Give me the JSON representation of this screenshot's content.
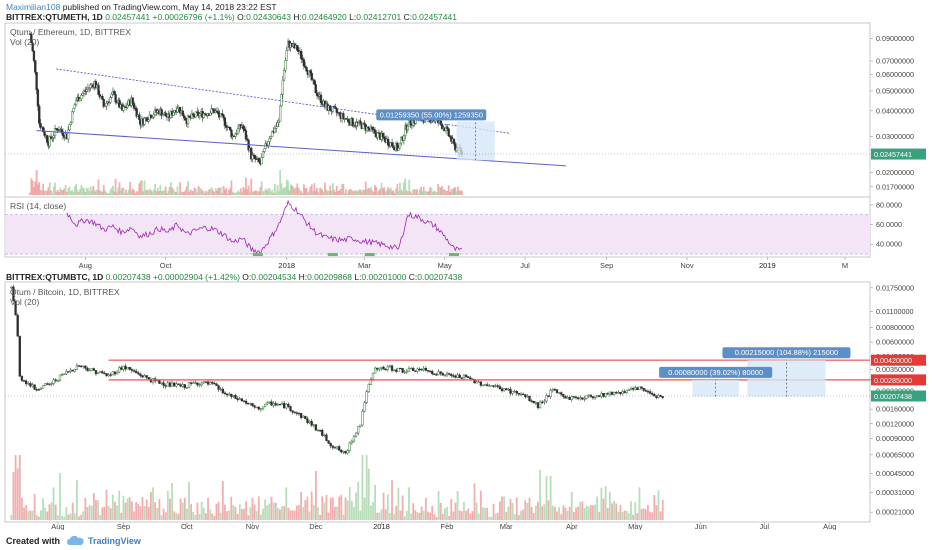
{
  "header": {
    "author": "Maximilian108",
    "published": " published on TradingView.com, May 14, 2018 23:22 EST"
  },
  "top": {
    "symbol_line": {
      "symbol": "BITTREX:QTUMETH, 1D",
      "last": "0.02457441",
      "change": "+0.00026796 (+1.1%)",
      "o_label": "O:",
      "o": "0.02430643",
      "h_label": "H:",
      "h": "0.02464920",
      "l_label": "L:",
      "l": "0.02412701",
      "c_label": "C:",
      "c": "0.02457441"
    },
    "pane_title": "Qtum / Ethereum, 1D, BITTREX",
    "vol_label": "Vol (20)",
    "rsi_label": "RSI (14, close)",
    "price_tag": "0.02457441",
    "measure_label": "0.01259350 (55.00%) 1259350"
  },
  "bottom": {
    "symbol_line": {
      "symbol": "BITTREX:QTUMBTC, 1D",
      "last": "0.00207438",
      "change": "+0.00002904 (+1.42%)",
      "o_label": "O:",
      "o": "0.00204534",
      "h_label": "H:",
      "h": "0.00209868",
      "l_label": "L:",
      "l": "0.00201000",
      "c_label": "C:",
      "c": "0.00207438"
    },
    "pane_title": "Qtum / Bitcoin, 1D, BITTREX",
    "vol_label": "Vol (20)",
    "price_tag": "0.00207438",
    "level_tags": [
      "0.00420000",
      "0.00285000"
    ],
    "measure_labels": [
      "0.00215000 (104.88%) 215000",
      "0.00080000 (39.02%) 80000"
    ]
  },
  "footer": {
    "created_with": "Created with",
    "brand": "TradingView"
  },
  "colors": {
    "up": "#26a69a",
    "down": "#ef5350",
    "candle_body": "#2e7d32",
    "trendline": "#5a5fc9",
    "rsi_line": "#9c27b0",
    "rsi_band": "#f3e5f5",
    "level_line": "#ef5350",
    "measure_fill": "#d6e6f7",
    "measure_label_bg": "#5d8fc7"
  },
  "chart_data": [
    {
      "type": "line",
      "name": "QTUMETH candlestick (daily)",
      "scale": "log",
      "y_axis_labels": [
        "0.09000000",
        "0.07000000",
        "0.06000000",
        "0.05000000",
        "0.04000000",
        "0.03000000",
        "0.02000000",
        "0.01700000"
      ],
      "y_ticks": [
        0.09,
        0.07,
        0.06,
        0.05,
        0.04,
        0.03,
        0.02,
        0.017
      ],
      "ylim": [
        0.0155,
        0.105
      ],
      "x_labels": [
        "Aug",
        "Oct",
        "2018",
        "Mar",
        "May",
        "Jul",
        "Sep",
        "Nov",
        "2019",
        "M"
      ],
      "x_label_dates": [
        "2017-08-01",
        "2017-10-01",
        "2018-01-01",
        "2018-03-01",
        "2018-05-01",
        "2018-07-01",
        "2018-09-01",
        "2018-11-01",
        "2019-01-01",
        "2019-03-01"
      ],
      "xlim": [
        "2017-06-01",
        "2019-03-20"
      ],
      "series": [
        {
          "x": [
            "2017-06-20",
            "2017-06-27",
            "2017-07-04",
            "2017-07-11",
            "2017-07-18",
            "2017-07-25",
            "2017-08-01",
            "2017-08-08",
            "2017-08-15",
            "2017-08-22",
            "2017-08-29",
            "2017-09-05",
            "2017-09-12",
            "2017-09-19",
            "2017-09-26",
            "2017-10-03",
            "2017-10-10",
            "2017-10-17",
            "2017-10-24",
            "2017-10-31",
            "2017-11-07",
            "2017-11-14",
            "2017-11-21",
            "2017-11-28",
            "2017-12-05",
            "2017-12-12",
            "2017-12-19",
            "2017-12-26",
            "2018-01-02",
            "2018-01-09",
            "2018-01-16",
            "2018-01-23",
            "2018-01-30",
            "2018-02-06",
            "2018-02-13",
            "2018-02-20",
            "2018-02-27",
            "2018-03-06",
            "2018-03-13",
            "2018-03-20",
            "2018-03-27",
            "2018-04-03",
            "2018-04-10",
            "2018-04-17",
            "2018-04-24",
            "2018-05-01",
            "2018-05-08",
            "2018-05-14"
          ],
          "values": [
            0.095,
            0.035,
            0.028,
            0.033,
            0.03,
            0.045,
            0.05,
            0.055,
            0.042,
            0.048,
            0.04,
            0.045,
            0.035,
            0.038,
            0.04,
            0.037,
            0.042,
            0.036,
            0.038,
            0.039,
            0.04,
            0.036,
            0.03,
            0.034,
            0.024,
            0.022,
            0.03,
            0.035,
            0.085,
            0.08,
            0.065,
            0.05,
            0.042,
            0.04,
            0.037,
            0.035,
            0.034,
            0.032,
            0.03,
            0.028,
            0.026,
            0.035,
            0.036,
            0.037,
            0.036,
            0.033,
            0.027,
            0.0246
          ]
        }
      ],
      "annotations": {
        "trend_upper": [
          [
            "2017-07-10",
            0.064
          ],
          [
            "2018-06-20",
            0.031
          ]
        ],
        "trend_lower": [
          [
            "2017-06-25",
            0.032
          ],
          [
            "2018-08-01",
            0.0215
          ]
        ],
        "measure": {
          "from": 0.0229,
          "to": 0.0355,
          "label": "0.01259350 (55.00%) 1259350"
        }
      }
    },
    {
      "type": "line",
      "name": "RSI (14, close)",
      "y_axis_labels": [
        "80.0000",
        "60.0000",
        "40.0000"
      ],
      "y_ticks": [
        80,
        60,
        40
      ],
      "ylim": [
        28,
        86
      ],
      "band": [
        30,
        70
      ],
      "series": [
        {
          "x": [
            "2017-07-18",
            "2017-07-25",
            "2017-08-01",
            "2017-08-08",
            "2017-08-15",
            "2017-08-22",
            "2017-08-29",
            "2017-09-05",
            "2017-09-12",
            "2017-09-19",
            "2017-09-26",
            "2017-10-03",
            "2017-10-10",
            "2017-10-17",
            "2017-10-24",
            "2017-10-31",
            "2017-11-07",
            "2017-11-14",
            "2017-11-21",
            "2017-11-28",
            "2017-12-05",
            "2017-12-12",
            "2017-12-19",
            "2017-12-26",
            "2018-01-02",
            "2018-01-09",
            "2018-01-16",
            "2018-01-23",
            "2018-01-30",
            "2018-02-06",
            "2018-02-13",
            "2018-02-20",
            "2018-02-27",
            "2018-03-06",
            "2018-03-13",
            "2018-03-20",
            "2018-03-27",
            "2018-04-03",
            "2018-04-10",
            "2018-04-17",
            "2018-04-24",
            "2018-05-01",
            "2018-05-08",
            "2018-05-14"
          ],
          "values": [
            72,
            60,
            65,
            62,
            55,
            58,
            52,
            57,
            48,
            51,
            56,
            52,
            60,
            50,
            54,
            57,
            55,
            50,
            42,
            46,
            35,
            32,
            45,
            60,
            82,
            74,
            62,
            52,
            47,
            45,
            44,
            46,
            43,
            42,
            40,
            38,
            35,
            70,
            68,
            63,
            58,
            48,
            35,
            33
          ]
        }
      ]
    },
    {
      "type": "line",
      "name": "QTUMBTC candlestick (daily)",
      "scale": "log",
      "y_axis_labels": [
        "0.01750000",
        "0.01100000",
        "0.00800000",
        "0.00600000",
        "0.00450000",
        "0.00350000",
        "0.00285000",
        "0.00230000",
        "0.00160000",
        "0.00120000",
        "0.00090000",
        "0.00065000",
        "0.00045000",
        "0.00031000",
        "0.00021000"
      ],
      "y_ticks": [
        0.0175,
        0.011,
        0.008,
        0.006,
        0.0045,
        0.0035,
        0.00285,
        0.0023,
        0.0016,
        0.0012,
        0.0009,
        0.00065,
        0.00045,
        0.00031,
        0.00021
      ],
      "ylim": [
        0.00018,
        0.0185
      ],
      "x_labels": [
        "Aug",
        "Sep",
        "Oct",
        "Nov",
        "Dec",
        "2018",
        "Feb",
        "Mar",
        "Apr",
        "May",
        "Jun",
        "Jul",
        "Aug"
      ],
      "x_label_dates": [
        "2017-08-01",
        "2017-09-01",
        "2017-10-01",
        "2017-11-01",
        "2017-12-01",
        "2018-01-01",
        "2018-02-01",
        "2018-03-01",
        "2018-04-01",
        "2018-05-01",
        "2018-06-01",
        "2018-07-01",
        "2018-08-01"
      ],
      "xlim": [
        "2017-07-07",
        "2018-08-20"
      ],
      "series": [
        {
          "x": [
            "2017-07-10",
            "2017-07-14",
            "2017-07-21",
            "2017-07-28",
            "2017-08-04",
            "2017-08-11",
            "2017-08-18",
            "2017-08-25",
            "2017-09-01",
            "2017-09-08",
            "2017-09-15",
            "2017-09-22",
            "2017-09-29",
            "2017-10-06",
            "2017-10-13",
            "2017-10-20",
            "2017-10-27",
            "2017-11-03",
            "2017-11-10",
            "2017-11-17",
            "2017-11-24",
            "2017-12-01",
            "2017-12-08",
            "2017-12-15",
            "2017-12-22",
            "2017-12-29",
            "2018-01-05",
            "2018-01-12",
            "2018-01-19",
            "2018-01-26",
            "2018-02-02",
            "2018-02-09",
            "2018-02-16",
            "2018-02-23",
            "2018-03-02",
            "2018-03-09",
            "2018-03-16",
            "2018-03-23",
            "2018-03-30",
            "2018-04-06",
            "2018-04-13",
            "2018-04-20",
            "2018-04-27",
            "2018-05-04",
            "2018-05-11",
            "2018-05-14"
          ],
          "values": [
            0.0175,
            0.003,
            0.0024,
            0.0026,
            0.0032,
            0.0038,
            0.0034,
            0.0031,
            0.0037,
            0.0032,
            0.0028,
            0.0026,
            0.0025,
            0.0027,
            0.0026,
            0.0021,
            0.0019,
            0.0016,
            0.0018,
            0.0017,
            0.0014,
            0.0011,
            0.0008,
            0.00065,
            0.0012,
            0.0035,
            0.0036,
            0.0034,
            0.0035,
            0.0033,
            0.0031,
            0.003,
            0.0027,
            0.0025,
            0.0023,
            0.0021,
            0.0017,
            0.0023,
            0.002,
            0.002,
            0.0021,
            0.0022,
            0.0023,
            0.0024,
            0.0021,
            0.00207
          ]
        }
      ],
      "annotations": {
        "levels": [
          0.0042,
          0.00285
        ],
        "measures": [
          {
            "from": 0.00205,
            "to": 0.0042,
            "label": "0.00215000 (104.88%) 215000"
          },
          {
            "from": 0.00205,
            "to": 0.00285,
            "label": "0.00080000 (39.02%) 80000"
          }
        ]
      }
    }
  ]
}
